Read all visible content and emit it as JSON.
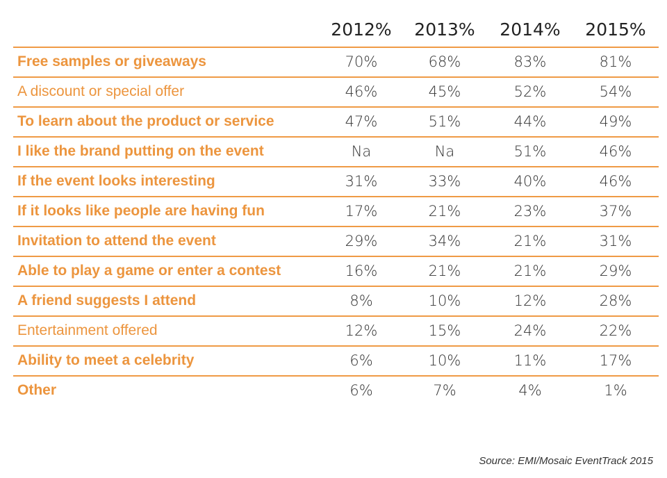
{
  "chart_data": {
    "type": "table",
    "title": "",
    "columns": [
      "2012%",
      "2013%",
      "2014%",
      "2015%"
    ],
    "rows": [
      {
        "label": "Free samples or giveaways",
        "bold": true,
        "values": [
          "70%",
          "68%",
          "83%",
          "81%"
        ]
      },
      {
        "label": "A discount or special offer",
        "bold": false,
        "values": [
          "46%",
          "45%",
          "52%",
          "54%"
        ]
      },
      {
        "label": "To learn about the product or service",
        "bold": true,
        "values": [
          "47%",
          "51%",
          "44%",
          "49%"
        ]
      },
      {
        "label": "I like the brand putting on the event",
        "bold": true,
        "values": [
          "Na",
          "Na",
          "51%",
          "46%"
        ]
      },
      {
        "label": "If the event looks interesting",
        "bold": true,
        "values": [
          "31%",
          "33%",
          "40%",
          "46%"
        ]
      },
      {
        "label": "If it looks like people are having fun",
        "bold": true,
        "values": [
          "17%",
          "21%",
          "23%",
          "37%"
        ]
      },
      {
        "label": "Invitation to attend the event",
        "bold": true,
        "values": [
          "29%",
          "34%",
          "21%",
          "31%"
        ]
      },
      {
        "label": "Able to play a game or enter a contest",
        "bold": true,
        "values": [
          "16%",
          "21%",
          "21%",
          "29%"
        ]
      },
      {
        "label": "A friend suggests I attend",
        "bold": true,
        "values": [
          "8%",
          "10%",
          "12%",
          "28%"
        ]
      },
      {
        "label": "Entertainment offered",
        "bold": false,
        "values": [
          "12%",
          "15%",
          "24%",
          "22%"
        ]
      },
      {
        "label": "Ability to meet a celebrity",
        "bold": true,
        "values": [
          "6%",
          "10%",
          "11%",
          "17%"
        ]
      },
      {
        "label": "Other",
        "bold": true,
        "values": [
          "6%",
          "7%",
          "4%",
          "1%"
        ]
      }
    ],
    "source": "Source: EMI/Mosaic EventTrack 2015"
  },
  "colors": {
    "accent": "#ec953e",
    "rule": "#ef9a45",
    "text": "#333333"
  }
}
